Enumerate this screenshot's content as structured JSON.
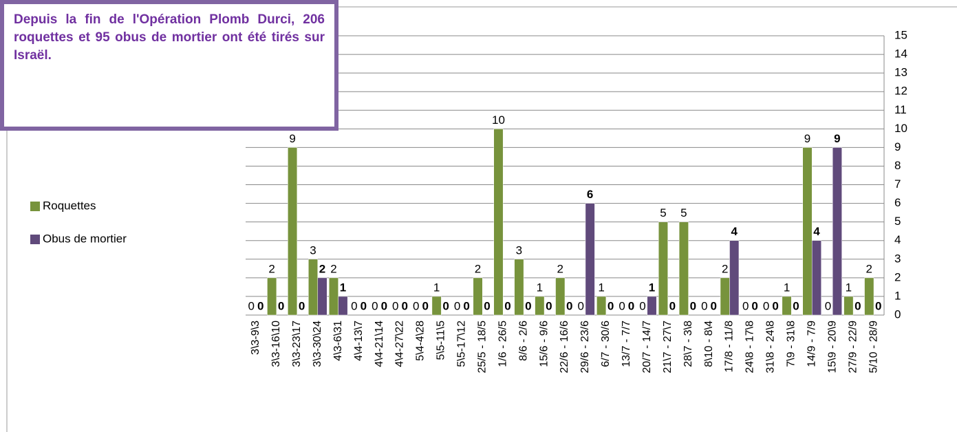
{
  "chart_data": {
    "type": "bar",
    "title": "Depuis la fin de l'Opération Plomb Durci, 206 roquettes et 95 obus de mortier ont été tirés sur Israël.",
    "categories": [
      "3\\3-9\\3",
      "3\\3-16\\10",
      "3\\3-23\\17",
      "3\\3-30\\24",
      "4\\3-6\\31",
      "4\\4-13\\7",
      "4\\4-21\\14",
      "4\\4-27\\22",
      "5\\4-4\\28",
      "5\\5-11\\5",
      "5\\5-17\\12",
      "25/5 - 18/5",
      "1/6 - 26/5",
      "8/6 - 2/6",
      "15/6 - 9/6",
      "22/6 - 16/6",
      "29/6 - 23/6",
      "6/7 - 30/6",
      "13/7 - 7/7",
      "20/7 - 14/7",
      "21\\7 - 27\\7",
      "28\\7 - 3\\8",
      "8\\10 - 8\\4",
      "17/8 - 11/8",
      "24\\8 - 17\\8",
      "31\\8 - 24\\8",
      "7\\9 - 31\\8",
      "14/9 - 7/9",
      "15\\9 - 20\\9",
      "27/9 - 22/9",
      "5/10 - 28/9"
    ],
    "series": [
      {
        "name": "Roquettes",
        "color": "#77933c",
        "values": [
          0,
          2,
          9,
          3,
          2,
          0,
          0,
          0,
          0,
          1,
          0,
          2,
          10,
          3,
          1,
          2,
          0,
          1,
          0,
          0,
          5,
          5,
          0,
          2,
          0,
          0,
          1,
          9,
          0,
          1,
          2
        ]
      },
      {
        "name": "Obus de mortier",
        "color": "#604a7b",
        "values": [
          0,
          0,
          0,
          2,
          1,
          0,
          0,
          0,
          0,
          0,
          0,
          0,
          0,
          0,
          0,
          0,
          6,
          0,
          0,
          1,
          0,
          0,
          0,
          4,
          0,
          0,
          0,
          4,
          9,
          0,
          0
        ]
      }
    ],
    "ylim": [
      0,
      15
    ],
    "yticks": [
      0,
      1,
      2,
      3,
      4,
      5,
      6,
      7,
      8,
      9,
      10,
      11,
      12,
      13,
      14,
      15
    ],
    "grid": true,
    "legend": "left"
  }
}
